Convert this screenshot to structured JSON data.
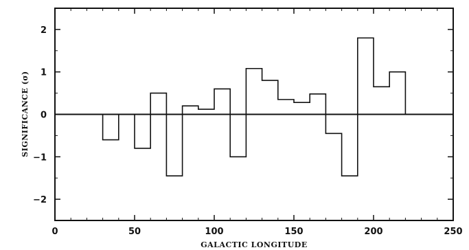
{
  "chart_data": {
    "type": "histogram",
    "xlabel": "GALACTIC LONGITUDE",
    "ylabel": "SIGNIFICANCE (σ)",
    "xlim": [
      0,
      250
    ],
    "ylim": [
      -2.5,
      2.5
    ],
    "x_ticks": [
      0,
      50,
      100,
      150,
      200,
      250
    ],
    "y_ticks": [
      -2,
      -1,
      0,
      1,
      2
    ],
    "zero_line": true,
    "grid": false,
    "bin_width": 10,
    "series": [
      {
        "bin_starts": [
          30,
          40,
          50,
          60,
          70,
          80,
          90,
          100,
          110,
          120,
          130,
          140,
          150,
          160,
          170,
          180,
          190,
          200,
          210
        ],
        "values": [
          -0.6,
          0.0,
          -0.8,
          0.5,
          -1.45,
          0.2,
          0.12,
          0.6,
          -1.0,
          1.08,
          0.8,
          0.35,
          0.28,
          0.48,
          -0.45,
          -1.45,
          1.8,
          0.65,
          1.0
        ]
      }
    ]
  }
}
